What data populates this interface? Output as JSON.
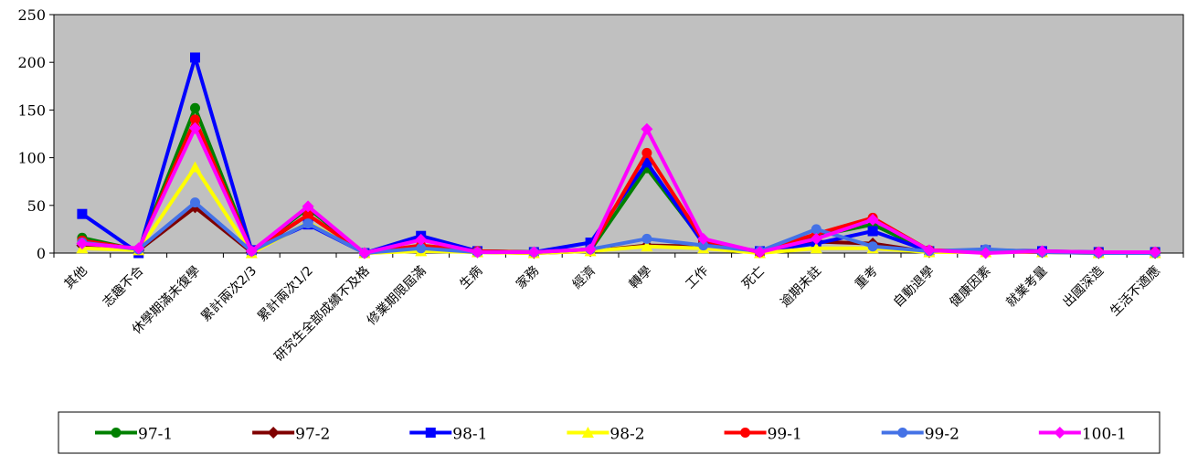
{
  "chart_data": {
    "type": "line",
    "title": "",
    "xlabel": "",
    "ylabel": "",
    "ylim": [
      0,
      250
    ],
    "yticks": [
      "0",
      "50",
      "100",
      "150",
      "200",
      "250"
    ],
    "grid": false,
    "legend_position": "bottom",
    "plot_background": "#c0c0c0",
    "categories": [
      "其他",
      "志趣不合",
      "休學期滿未復學",
      "累計兩次2/3",
      "累計兩次1/2",
      "研究生全部成績不及格",
      "修業期限屆滿",
      "生病",
      "家務",
      "經濟",
      "轉學",
      "工作",
      "死亡",
      "逾期未註",
      "重考",
      "自動退學",
      "健康因素",
      "就業考量",
      "出國深造",
      "生活不適應"
    ],
    "series": [
      {
        "name": "97-1",
        "color": "#008000",
        "marker": "circle",
        "values": [
          16,
          3,
          152,
          2,
          47,
          0,
          6,
          2,
          1,
          3,
          89,
          12,
          1,
          18,
          30,
          2,
          2,
          1,
          1,
          1
        ]
      },
      {
        "name": "97-2",
        "color": "#800000",
        "marker": "diamond",
        "values": [
          8,
          3,
          48,
          1,
          40,
          0,
          3,
          1,
          0,
          2,
          8,
          7,
          1,
          12,
          10,
          1,
          1,
          1,
          0,
          0
        ]
      },
      {
        "name": "98-1",
        "color": "#0000ff",
        "marker": "square",
        "values": [
          41,
          0,
          205,
          3,
          30,
          0,
          18,
          2,
          1,
          11,
          95,
          10,
          2,
          10,
          23,
          2,
          3,
          2,
          1,
          1
        ]
      },
      {
        "name": "98-2",
        "color": "#ffff00",
        "marker": "triangle",
        "values": [
          5,
          3,
          90,
          0,
          32,
          0,
          2,
          1,
          0,
          2,
          7,
          5,
          0,
          5,
          5,
          1,
          1,
          1,
          0,
          0
        ]
      },
      {
        "name": "99-1",
        "color": "#ff0000",
        "marker": "circle",
        "values": [
          13,
          4,
          140,
          2,
          40,
          0,
          8,
          2,
          1,
          4,
          105,
          13,
          1,
          20,
          37,
          3,
          2,
          1,
          1,
          1
        ]
      },
      {
        "name": "99-2",
        "color": "#4472e6",
        "marker": "circle",
        "values": [
          11,
          4,
          53,
          2,
          31,
          0,
          5,
          1,
          1,
          4,
          15,
          8,
          2,
          25,
          7,
          2,
          4,
          1,
          0,
          0
        ]
      },
      {
        "name": "100-1",
        "color": "#ff00ff",
        "marker": "diamond",
        "values": [
          10,
          5,
          131,
          2,
          49,
          0,
          14,
          1,
          1,
          4,
          130,
          15,
          1,
          15,
          35,
          3,
          0,
          2,
          1,
          1
        ]
      }
    ]
  }
}
